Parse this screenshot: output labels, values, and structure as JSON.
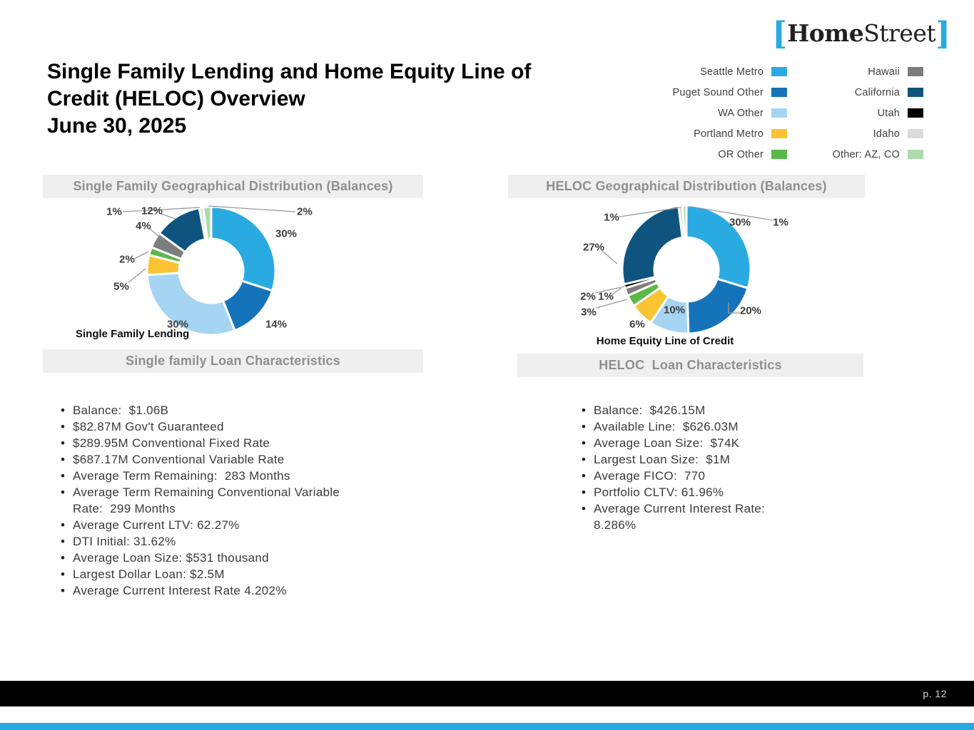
{
  "logo": {
    "bracket_left": "[",
    "home": "Home",
    "street": "Street",
    "bracket_right": "]",
    "bracket_color": "#29ABE2",
    "text_color": "#231F20"
  },
  "title": {
    "line1": "Single Family Lending and Home Equity Line of",
    "line2": "Credit (HELOC) Overview",
    "line3": "June 30, 2025"
  },
  "legend": {
    "position": "top-right",
    "items": [
      {
        "label": "Seattle Metro",
        "color": "#29ABE2"
      },
      {
        "label": "Puget Sound Other",
        "color": "#1573B9"
      },
      {
        "label": "WA Other",
        "color": "#A6D4F3"
      },
      {
        "label": "Portland Metro",
        "color": "#F9C332"
      },
      {
        "label": "OR Other",
        "color": "#5BB947"
      },
      {
        "label": "Hawaii",
        "color": "#7D7D7D"
      },
      {
        "label": "California",
        "color": "#0F547F"
      },
      {
        "label": "Utah",
        "color": "#000000"
      },
      {
        "label": "Idaho",
        "color": "#DCDCDC"
      },
      {
        "label": "Other: AZ, CO",
        "color": "#ADDBAC"
      }
    ]
  },
  "chart_data": [
    {
      "type": "pie",
      "subtype": "donut",
      "title": "Single Family Geographical Distribution (Balances)",
      "axis_label": "Single Family Lending",
      "legend_position": "top-right",
      "grid": false,
      "slices": [
        {
          "label": "Seattle Metro",
          "value": 30,
          "pct_label": "30%",
          "color": "#29ABE2"
        },
        {
          "label": "Puget Sound Other",
          "value": 14,
          "pct_label": "14%",
          "color": "#1573B9"
        },
        {
          "label": "WA Other",
          "value": 30,
          "pct_label": "30%",
          "color": "#A6D4F3"
        },
        {
          "label": "Portland Metro",
          "value": 5,
          "pct_label": "5%",
          "color": "#F9C332"
        },
        {
          "label": "OR Other",
          "value": 2,
          "pct_label": "2%",
          "color": "#5BB947"
        },
        {
          "label": "Hawaii",
          "value": 4,
          "pct_label": "4%",
          "color": "#7D7D7D"
        },
        {
          "label": "California",
          "value": 12,
          "pct_label": "12%",
          "color": "#0F547F"
        },
        {
          "label": "Idaho",
          "value": 1,
          "pct_label": "1%",
          "color": "#DCDCDC"
        },
        {
          "label": "Other: AZ, CO",
          "value": 2,
          "pct_label": "2%",
          "color": "#ADDBAC"
        }
      ]
    },
    {
      "type": "pie",
      "subtype": "donut",
      "title": "HELOC Geographical Distribution (Balances)",
      "axis_label": "Home Equity Line of Credit",
      "legend_position": "top-right",
      "grid": false,
      "slices": [
        {
          "label": "Seattle Metro",
          "value": 30,
          "pct_label": "30%",
          "color": "#29ABE2"
        },
        {
          "label": "Puget Sound Other",
          "value": 20,
          "pct_label": "20%",
          "color": "#1573B9"
        },
        {
          "label": "WA Other",
          "value": 10,
          "pct_label": "10%",
          "color": "#A6D4F3"
        },
        {
          "label": "Portland Metro",
          "value": 6,
          "pct_label": "6%",
          "color": "#F9C332"
        },
        {
          "label": "OR Other",
          "value": 3,
          "pct_label": "3%",
          "color": "#5BB947"
        },
        {
          "label": "Hawaii",
          "value": 2,
          "pct_label": "2%",
          "color": "#7D7D7D"
        },
        {
          "label": "Utah",
          "value": 1,
          "pct_label": "1%",
          "color": "#000000"
        },
        {
          "label": "California",
          "value": 27,
          "pct_label": "27%",
          "color": "#0F547F"
        },
        {
          "label": "Idaho",
          "value": 1,
          "pct_label": "1%",
          "color": "#DCDCDC"
        },
        {
          "label": "Other: AZ, CO",
          "value": 1,
          "pct_label": "1%",
          "color": "#ADDBAC"
        }
      ]
    }
  ],
  "panels": {
    "sf": {
      "header": "Single family Loan Characteristics",
      "items": [
        "Balance:  $1.06B",
        "$82.87M Gov't Guaranteed",
        "$289.95M Conventional Fixed Rate",
        "$687.17M Conventional Variable Rate",
        "Average Term Remaining:  283 Months",
        "Average Term Remaining Conventional Variable Rate:  299 Months",
        "Average Current LTV: 62.27%",
        "DTI Initial: 31.62%",
        "Average Loan Size: $531 thousand",
        "Largest Dollar Loan: $2.5M",
        "Average Current Interest Rate 4.202%"
      ]
    },
    "heloc": {
      "header": "HELOC  Loan Characteristics",
      "items": [
        "Balance:  $426.15M",
        "Available Line:  $626.03M",
        "Average Loan Size:  $74K",
        "Largest Loan Size:  $1M",
        "Average FICO:  770",
        "Portfolio CLTV: 61.96%",
        "Average Current Interest Rate: 8.286%"
      ]
    }
  },
  "footer": {
    "page_label": "p. 12",
    "bar_color": "#000000",
    "accent_color": "#29ABE2"
  }
}
